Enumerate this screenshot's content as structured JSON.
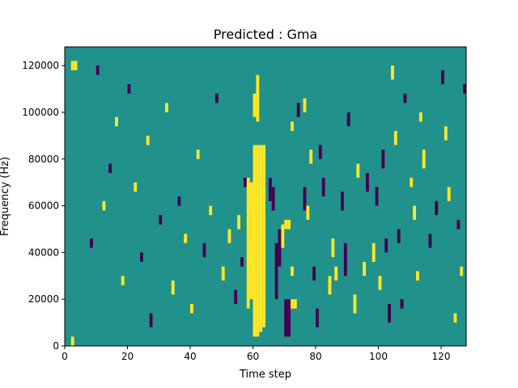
{
  "chart_data": {
    "type": "heatmap",
    "title": "Predicted : Gma",
    "xlabel": "Time step",
    "ylabel": "Frequency (Hz)",
    "xlim": [
      0,
      128
    ],
    "ylim": [
      0,
      128000
    ],
    "xticks": [
      0,
      20,
      40,
      60,
      80,
      100,
      120
    ],
    "yticks": [
      0,
      20000,
      40000,
      60000,
      80000,
      100000,
      120000
    ],
    "grid": false,
    "legend": "none",
    "colormap": "viridis",
    "levels": [
      {
        "value": 0,
        "color": "#440154"
      },
      {
        "value": 0.5,
        "color": "#21918c"
      },
      {
        "value": 1,
        "color": "#fde725"
      }
    ],
    "background_level": 0.5,
    "n_time_steps": 128,
    "n_freq_bins": 64,
    "freq_bin_width_hz": 2000,
    "cells": [
      {
        "t": 60,
        "f0": 4000,
        "f1": 86000,
        "v": 1
      },
      {
        "t": 61,
        "f0": 4000,
        "f1": 86000,
        "v": 1
      },
      {
        "t": 62,
        "f0": 6000,
        "f1": 86000,
        "v": 1
      },
      {
        "t": 63,
        "f0": 8000,
        "f1": 86000,
        "v": 1
      },
      {
        "t": 58,
        "f0": 16000,
        "f1": 72000,
        "v": 1
      },
      {
        "t": 59,
        "f0": 20000,
        "f1": 70000,
        "v": 1
      },
      {
        "t": 60,
        "f0": 98000,
        "f1": 108000,
        "v": 1
      },
      {
        "t": 61,
        "f0": 96000,
        "f1": 116000,
        "v": 1
      },
      {
        "t": 2,
        "f0": 118000,
        "f1": 122000,
        "v": 1
      },
      {
        "t": 3,
        "f0": 118000,
        "f1": 122000,
        "v": 1
      },
      {
        "t": 2,
        "f0": 0,
        "f1": 4000,
        "v": 1
      },
      {
        "t": 70,
        "f0": 4000,
        "f1": 20000,
        "v": 0
      },
      {
        "t": 71,
        "f0": 4000,
        "f1": 20000,
        "v": 0
      },
      {
        "t": 72,
        "f0": 16000,
        "f1": 20000,
        "v": 1
      },
      {
        "t": 73,
        "f0": 16000,
        "f1": 20000,
        "v": 1
      },
      {
        "t": 65,
        "f0": 62000,
        "f1": 72000,
        "v": 0
      },
      {
        "t": 66,
        "f0": 58000,
        "f1": 68000,
        "v": 0
      },
      {
        "t": 67,
        "f0": 20000,
        "f1": 44000,
        "v": 0
      },
      {
        "t": 68,
        "f0": 34000,
        "f1": 50000,
        "v": 0
      },
      {
        "t": 69,
        "f0": 42000,
        "f1": 52000,
        "v": 1
      },
      {
        "t": 70,
        "f0": 50000,
        "f1": 54000,
        "v": 1
      },
      {
        "t": 71,
        "f0": 50000,
        "f1": 54000,
        "v": 1
      },
      {
        "t": 72,
        "f0": 30000,
        "f1": 34000,
        "v": 1
      },
      {
        "t": 72,
        "f0": 92000,
        "f1": 96000,
        "v": 1
      },
      {
        "t": 74,
        "f0": 98000,
        "f1": 104000,
        "v": 0
      },
      {
        "t": 76,
        "f0": 100000,
        "f1": 106000,
        "v": 1
      },
      {
        "t": 76,
        "f0": 58000,
        "f1": 68000,
        "v": 0
      },
      {
        "t": 77,
        "f0": 54000,
        "f1": 60000,
        "v": 1
      },
      {
        "t": 78,
        "f0": 78000,
        "f1": 84000,
        "v": 1
      },
      {
        "t": 79,
        "f0": 28000,
        "f1": 34000,
        "v": 0
      },
      {
        "t": 80,
        "f0": 8000,
        "f1": 16000,
        "v": 0
      },
      {
        "t": 81,
        "f0": 80000,
        "f1": 86000,
        "v": 0
      },
      {
        "t": 82,
        "f0": 64000,
        "f1": 72000,
        "v": 0
      },
      {
        "t": 84,
        "f0": 22000,
        "f1": 30000,
        "v": 1
      },
      {
        "t": 85,
        "f0": 38000,
        "f1": 46000,
        "v": 1
      },
      {
        "t": 86,
        "f0": 28000,
        "f1": 34000,
        "v": 1
      },
      {
        "t": 88,
        "f0": 58000,
        "f1": 66000,
        "v": 0
      },
      {
        "t": 89,
        "f0": 30000,
        "f1": 44000,
        "v": 0
      },
      {
        "t": 90,
        "f0": 94000,
        "f1": 100000,
        "v": 0
      },
      {
        "t": 92,
        "f0": 14000,
        "f1": 22000,
        "v": 1
      },
      {
        "t": 93,
        "f0": 72000,
        "f1": 78000,
        "v": 1
      },
      {
        "t": 95,
        "f0": 30000,
        "f1": 36000,
        "v": 1
      },
      {
        "t": 96,
        "f0": 66000,
        "f1": 74000,
        "v": 0
      },
      {
        "t": 98,
        "f0": 36000,
        "f1": 44000,
        "v": 1
      },
      {
        "t": 99,
        "f0": 60000,
        "f1": 68000,
        "v": 0
      },
      {
        "t": 100,
        "f0": 24000,
        "f1": 30000,
        "v": 1
      },
      {
        "t": 101,
        "f0": 76000,
        "f1": 84000,
        "v": 0
      },
      {
        "t": 102,
        "f0": 40000,
        "f1": 46000,
        "v": 0
      },
      {
        "t": 103,
        "f0": 10000,
        "f1": 18000,
        "v": 0
      },
      {
        "t": 104,
        "f0": 114000,
        "f1": 120000,
        "v": 1
      },
      {
        "t": 105,
        "f0": 86000,
        "f1": 92000,
        "v": 1
      },
      {
        "t": 106,
        "f0": 44000,
        "f1": 50000,
        "v": 0
      },
      {
        "t": 107,
        "f0": 16000,
        "f1": 20000,
        "v": 0
      },
      {
        "t": 108,
        "f0": 104000,
        "f1": 108000,
        "v": 0
      },
      {
        "t": 110,
        "f0": 68000,
        "f1": 72000,
        "v": 1
      },
      {
        "t": 111,
        "f0": 54000,
        "f1": 60000,
        "v": 1
      },
      {
        "t": 112,
        "f0": 28000,
        "f1": 32000,
        "v": 1
      },
      {
        "t": 113,
        "f0": 96000,
        "f1": 100000,
        "v": 1
      },
      {
        "t": 114,
        "f0": 76000,
        "f1": 84000,
        "v": 1
      },
      {
        "t": 116,
        "f0": 42000,
        "f1": 48000,
        "v": 0
      },
      {
        "t": 118,
        "f0": 56000,
        "f1": 62000,
        "v": 0
      },
      {
        "t": 120,
        "f0": 112000,
        "f1": 118000,
        "v": 0
      },
      {
        "t": 121,
        "f0": 88000,
        "f1": 94000,
        "v": 1
      },
      {
        "t": 122,
        "f0": 62000,
        "f1": 68000,
        "v": 1
      },
      {
        "t": 124,
        "f0": 10000,
        "f1": 14000,
        "v": 1
      },
      {
        "t": 125,
        "f0": 50000,
        "f1": 54000,
        "v": 0
      },
      {
        "t": 126,
        "f0": 30000,
        "f1": 34000,
        "v": 1
      },
      {
        "t": 127,
        "f0": 108000,
        "f1": 112000,
        "v": 0
      },
      {
        "t": 8,
        "f0": 42000,
        "f1": 46000,
        "v": 0
      },
      {
        "t": 10,
        "f0": 116000,
        "f1": 120000,
        "v": 0
      },
      {
        "t": 12,
        "f0": 58000,
        "f1": 62000,
        "v": 1
      },
      {
        "t": 14,
        "f0": 74000,
        "f1": 78000,
        "v": 0
      },
      {
        "t": 16,
        "f0": 94000,
        "f1": 98000,
        "v": 1
      },
      {
        "t": 18,
        "f0": 26000,
        "f1": 30000,
        "v": 1
      },
      {
        "t": 20,
        "f0": 108000,
        "f1": 112000,
        "v": 0
      },
      {
        "t": 22,
        "f0": 66000,
        "f1": 70000,
        "v": 1
      },
      {
        "t": 24,
        "f0": 36000,
        "f1": 40000,
        "v": 0
      },
      {
        "t": 26,
        "f0": 86000,
        "f1": 90000,
        "v": 1
      },
      {
        "t": 27,
        "f0": 8000,
        "f1": 14000,
        "v": 0
      },
      {
        "t": 30,
        "f0": 52000,
        "f1": 56000,
        "v": 0
      },
      {
        "t": 32,
        "f0": 100000,
        "f1": 104000,
        "v": 1
      },
      {
        "t": 34,
        "f0": 22000,
        "f1": 28000,
        "v": 1
      },
      {
        "t": 36,
        "f0": 60000,
        "f1": 64000,
        "v": 0
      },
      {
        "t": 38,
        "f0": 44000,
        "f1": 48000,
        "v": 1
      },
      {
        "t": 40,
        "f0": 14000,
        "f1": 18000,
        "v": 1
      },
      {
        "t": 42,
        "f0": 80000,
        "f1": 84000,
        "v": 1
      },
      {
        "t": 44,
        "f0": 38000,
        "f1": 44000,
        "v": 0
      },
      {
        "t": 46,
        "f0": 56000,
        "f1": 60000,
        "v": 1
      },
      {
        "t": 48,
        "f0": 104000,
        "f1": 108000,
        "v": 0
      },
      {
        "t": 50,
        "f0": 28000,
        "f1": 34000,
        "v": 1
      },
      {
        "t": 52,
        "f0": 44000,
        "f1": 50000,
        "v": 1
      },
      {
        "t": 54,
        "f0": 18000,
        "f1": 24000,
        "v": 0
      },
      {
        "t": 55,
        "f0": 50000,
        "f1": 56000,
        "v": 1
      },
      {
        "t": 56,
        "f0": 34000,
        "f1": 38000,
        "v": 0
      },
      {
        "t": 57,
        "f0": 68000,
        "f1": 72000,
        "v": 0
      }
    ]
  }
}
